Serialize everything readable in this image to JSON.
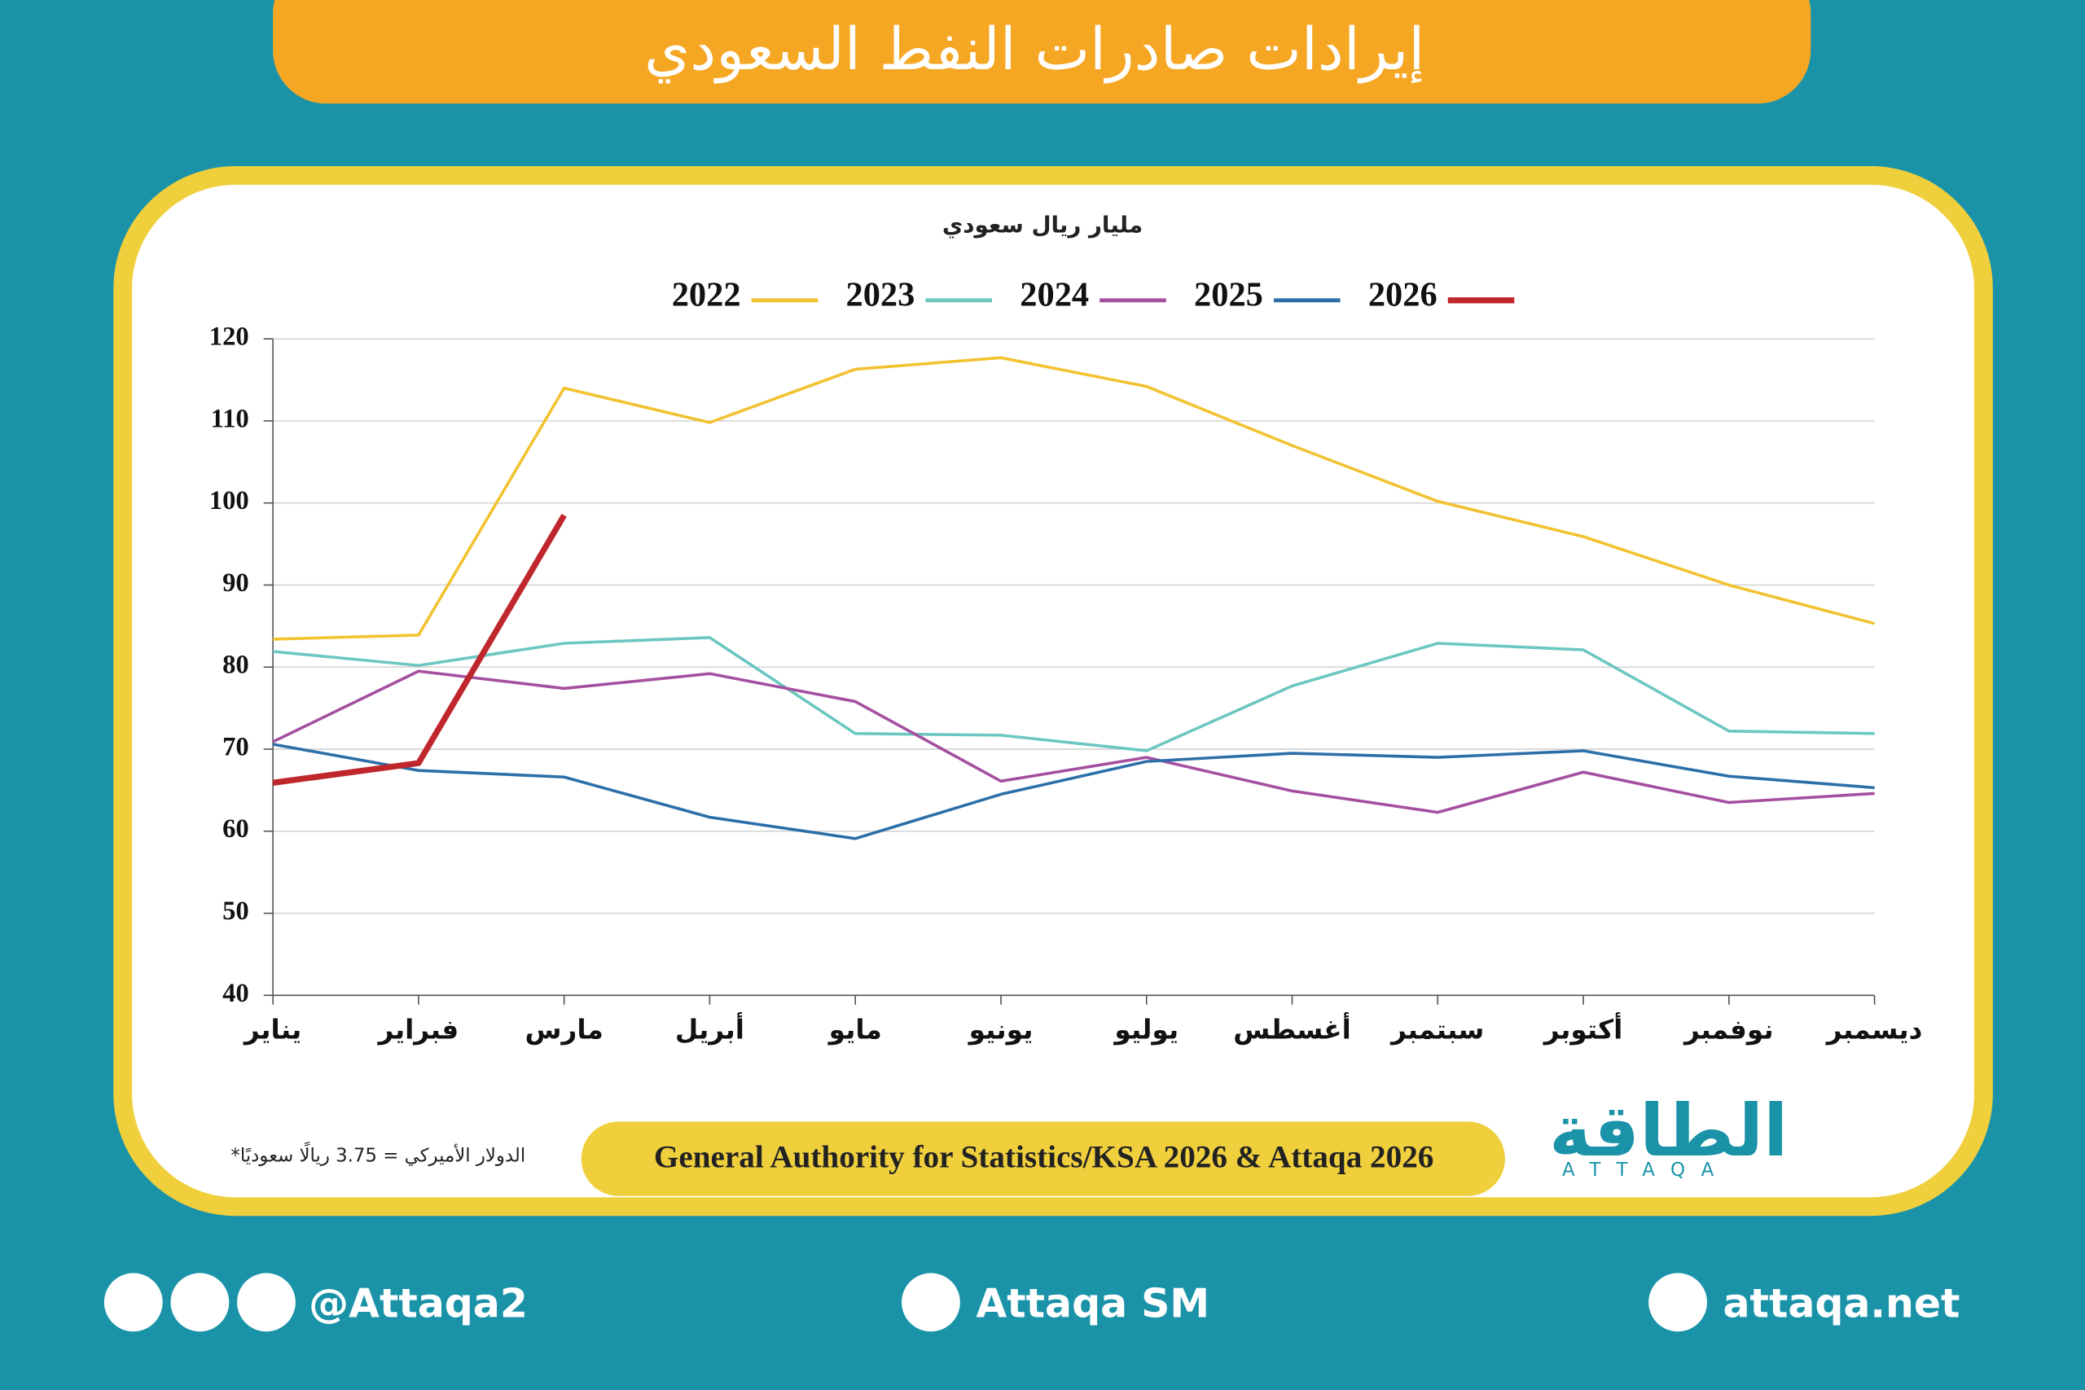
{
  "header": {
    "title": "إيرادات صادرات النفط السعودي"
  },
  "chart_data": {
    "type": "line",
    "subtitle": "مليار ريال سعودي",
    "categories": [
      "يناير",
      "فبراير",
      "مارس",
      "أبريل",
      "مايو",
      "يونيو",
      "يوليو",
      "أغسطس",
      "سبتمبر",
      "أكتوبر",
      "نوفمبر",
      "ديسمبر"
    ],
    "series": [
      {
        "name": "2022",
        "color": "#f2c230",
        "values": [
          83.4,
          83.9,
          114.0,
          109.8,
          116.3,
          117.7,
          114.2,
          107.0,
          100.2,
          95.9,
          90.0,
          85.3
        ]
      },
      {
        "name": "2023",
        "color": "#6cc7c0",
        "values": [
          81.9,
          80.2,
          82.9,
          83.6,
          71.9,
          71.7,
          69.8,
          77.7,
          82.9,
          82.1,
          72.2,
          71.9
        ]
      },
      {
        "name": "2024",
        "color": "#a44fa0",
        "values": [
          70.9,
          79.5,
          77.4,
          79.2,
          75.8,
          66.1,
          69.0,
          64.9,
          62.3,
          67.2,
          63.5,
          64.6
        ]
      },
      {
        "name": "2025",
        "color": "#2c6fa8",
        "values": [
          70.6,
          67.4,
          66.6,
          61.7,
          59.1,
          64.5,
          68.5,
          69.5,
          69.0,
          69.8,
          66.7,
          65.3
        ]
      },
      {
        "name": "2026",
        "color": "#c0272d",
        "values": [
          65.9,
          68.3,
          98.5,
          null,
          null,
          null,
          null,
          null,
          null,
          null,
          null,
          null
        ]
      }
    ],
    "ylim": [
      40,
      120
    ],
    "yticks": [
      40,
      50,
      60,
      70,
      80,
      90,
      100,
      110,
      120
    ],
    "grid": true,
    "source": "General Authority for Statistics/KSA 2026 & Attaqa 2026",
    "note": "*الدولار الأميركي = 3.75 ريالًا سعوديًا"
  },
  "logo": {
    "name": "الطاقة",
    "latin": "ATTAQA"
  },
  "footer": {
    "social": "@Attaqa2",
    "youtube": "Attaqa SM",
    "website": "attaqa.net"
  }
}
